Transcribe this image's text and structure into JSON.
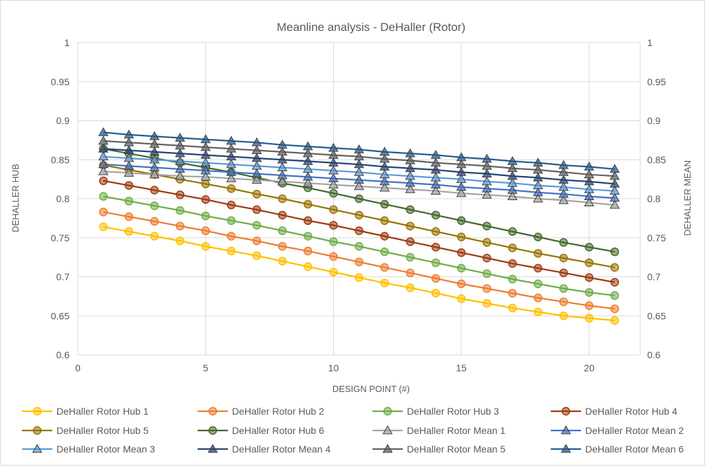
{
  "chart_data": {
    "type": "line",
    "title": "Meanline analysis - DeHaller (Rotor)",
    "xlabel": "DESIGN POINT (#)",
    "ylabel_left": "DEHALLER HUB",
    "ylabel_right": "DEHALLER MEAN",
    "xlim": [
      0,
      22
    ],
    "ylim_left": [
      0.6,
      1
    ],
    "ylim_right": [
      0.6,
      1
    ],
    "x_ticks": [
      "0",
      "5",
      "10",
      "15",
      "20"
    ],
    "y_ticks_left": [
      "0.6",
      "0.65",
      "0.7",
      "0.75",
      "0.8",
      "0.85",
      "0.9",
      "0.95",
      "1"
    ],
    "y_ticks_right": [
      "0.6",
      "0.65",
      "0.7",
      "0.75",
      "0.8",
      "0.85",
      "0.9",
      "0.95",
      "1"
    ],
    "grid": true,
    "legend_position": "bottom",
    "x": [
      1,
      2,
      3,
      4,
      5,
      6,
      7,
      8,
      9,
      10,
      11,
      12,
      13,
      14,
      15,
      16,
      17,
      18,
      19,
      20,
      21
    ],
    "series": [
      {
        "name": "DeHaller Rotor Hub 1",
        "axis": "left",
        "marker": "circle",
        "color": "#FFC000",
        "values": [
          0.764,
          0.758,
          0.752,
          0.746,
          0.739,
          0.733,
          0.727,
          0.72,
          0.713,
          0.706,
          0.699,
          0.692,
          0.686,
          0.679,
          0.672,
          0.666,
          0.66,
          0.655,
          0.65,
          0.647,
          0.644
        ]
      },
      {
        "name": "DeHaller Rotor Hub 2",
        "axis": "left",
        "marker": "circle",
        "color": "#ED7D31",
        "values": [
          0.783,
          0.777,
          0.771,
          0.765,
          0.759,
          0.752,
          0.746,
          0.739,
          0.733,
          0.726,
          0.719,
          0.712,
          0.705,
          0.698,
          0.691,
          0.685,
          0.679,
          0.673,
          0.668,
          0.663,
          0.659
        ]
      },
      {
        "name": "DeHaller Rotor Hub 3",
        "axis": "left",
        "marker": "circle",
        "color": "#70AD47",
        "values": [
          0.803,
          0.797,
          0.791,
          0.785,
          0.778,
          0.772,
          0.766,
          0.759,
          0.752,
          0.745,
          0.739,
          0.732,
          0.725,
          0.718,
          0.711,
          0.704,
          0.697,
          0.691,
          0.685,
          0.68,
          0.676
        ]
      },
      {
        "name": "DeHaller Rotor Hub 4",
        "axis": "left",
        "marker": "circle",
        "color": "#9E3B10",
        "values": [
          0.823,
          0.817,
          0.811,
          0.805,
          0.799,
          0.792,
          0.786,
          0.779,
          0.772,
          0.766,
          0.759,
          0.752,
          0.745,
          0.738,
          0.731,
          0.724,
          0.717,
          0.711,
          0.705,
          0.699,
          0.693
        ]
      },
      {
        "name": "DeHaller Rotor Hub 5",
        "axis": "left",
        "marker": "circle",
        "color": "#997300",
        "values": [
          0.843,
          0.837,
          0.831,
          0.825,
          0.819,
          0.813,
          0.806,
          0.8,
          0.793,
          0.786,
          0.779,
          0.772,
          0.765,
          0.758,
          0.751,
          0.744,
          0.737,
          0.73,
          0.724,
          0.718,
          0.712
        ]
      },
      {
        "name": "DeHaller Rotor Hub 6",
        "axis": "left",
        "marker": "circle",
        "color": "#43682B",
        "values": [
          0.864,
          0.858,
          0.852,
          0.846,
          0.84,
          0.834,
          0.827,
          0.82,
          0.814,
          0.807,
          0.8,
          0.793,
          0.786,
          0.779,
          0.772,
          0.765,
          0.758,
          0.751,
          0.744,
          0.738,
          0.732
        ]
      },
      {
        "name": "DeHaller Rotor Mean 1",
        "axis": "right",
        "marker": "triangle",
        "color": "#A5A5A5",
        "values": [
          0.835,
          0.833,
          0.831,
          0.829,
          0.828,
          0.826,
          0.824,
          0.822,
          0.82,
          0.818,
          0.816,
          0.814,
          0.812,
          0.81,
          0.807,
          0.805,
          0.803,
          0.8,
          0.798,
          0.795,
          0.792
        ]
      },
      {
        "name": "DeHaller Rotor Mean 2",
        "axis": "right",
        "marker": "triangle",
        "color": "#4472C4",
        "values": [
          0.844,
          0.842,
          0.84,
          0.838,
          0.836,
          0.834,
          0.832,
          0.83,
          0.828,
          0.826,
          0.824,
          0.822,
          0.82,
          0.818,
          0.815,
          0.813,
          0.811,
          0.808,
          0.806,
          0.803,
          0.801
        ]
      },
      {
        "name": "DeHaller Rotor Mean 3",
        "axis": "right",
        "marker": "triangle",
        "color": "#5B9BD5",
        "values": [
          0.854,
          0.852,
          0.85,
          0.848,
          0.846,
          0.844,
          0.842,
          0.84,
          0.838,
          0.836,
          0.834,
          0.831,
          0.829,
          0.827,
          0.825,
          0.822,
          0.82,
          0.817,
          0.815,
          0.812,
          0.81
        ]
      },
      {
        "name": "DeHaller Rotor Mean 4",
        "axis": "right",
        "marker": "triangle",
        "color": "#264478",
        "values": [
          0.864,
          0.862,
          0.86,
          0.858,
          0.856,
          0.854,
          0.852,
          0.85,
          0.848,
          0.846,
          0.844,
          0.841,
          0.839,
          0.837,
          0.834,
          0.832,
          0.829,
          0.827,
          0.824,
          0.822,
          0.819
        ]
      },
      {
        "name": "DeHaller Rotor Mean 5",
        "axis": "right",
        "marker": "triangle",
        "color": "#636363",
        "values": [
          0.874,
          0.872,
          0.87,
          0.868,
          0.866,
          0.864,
          0.862,
          0.86,
          0.858,
          0.856,
          0.854,
          0.851,
          0.849,
          0.846,
          0.844,
          0.842,
          0.839,
          0.837,
          0.834,
          0.831,
          0.829
        ]
      },
      {
        "name": "DeHaller Rotor Mean 6",
        "axis": "right",
        "marker": "triangle",
        "color": "#255E91",
        "values": [
          0.885,
          0.882,
          0.88,
          0.878,
          0.876,
          0.874,
          0.872,
          0.869,
          0.867,
          0.865,
          0.863,
          0.86,
          0.858,
          0.856,
          0.853,
          0.851,
          0.848,
          0.846,
          0.843,
          0.841,
          0.838
        ]
      }
    ]
  }
}
